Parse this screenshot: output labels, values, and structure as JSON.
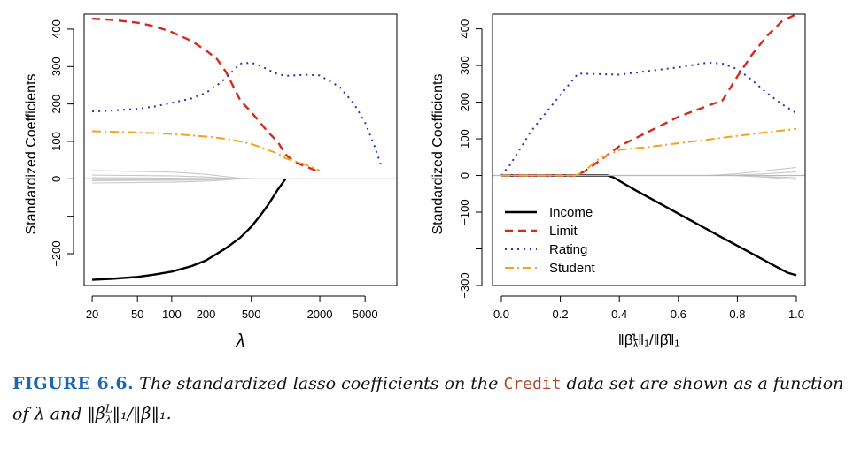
{
  "caption": {
    "label": "FIGURE 6.6.",
    "text1": "The standardized lasso coefficients on the",
    "dataset": "Credit",
    "text2": "data set are shown as a function of",
    "lambda": "λ",
    "and": "and",
    "norm": "‖β̂",
    "sup": "L",
    "sub": "λ",
    "norm_tail": "‖₁/‖β̂‖₁."
  },
  "chart_data": [
    {
      "type": "line",
      "panel": "left",
      "xlabel": "λ",
      "ylabel": "Standardized Coefficients",
      "xscale": "log",
      "xlim": [
        17,
        9500
      ],
      "ylim": [
        -285,
        440
      ],
      "xticks": [
        20,
        50,
        100,
        200,
        500,
        2000,
        5000
      ],
      "xtick_labels": [
        "20",
        "50",
        "100",
        "200",
        "500",
        "2000",
        "5000"
      ],
      "yticks": [
        -200,
        -100,
        0,
        100,
        200,
        300,
        400
      ],
      "ytick_labels": [
        "−200",
        "",
        "0",
        "100",
        "200",
        "300",
        "400"
      ],
      "legend": [],
      "series": [
        {
          "name": "Income",
          "color": "#000000",
          "dash": "",
          "width": 2.4,
          "x": [
            20,
            30,
            50,
            70,
            100,
            150,
            200,
            300,
            400,
            500,
            600,
            700,
            850,
            1000
          ],
          "y": [
            -270,
            -267,
            -262,
            -256,
            -248,
            -233,
            -218,
            -185,
            -157,
            -128,
            -98,
            -70,
            -30,
            0
          ]
        },
        {
          "name": "Limit",
          "color": "#d52a1e",
          "dash": "9,6",
          "width": 2.4,
          "x": [
            20,
            30,
            50,
            70,
            100,
            150,
            200,
            250,
            300,
            400,
            500,
            600,
            700,
            850,
            1000,
            1200,
            1500,
            2000
          ],
          "y": [
            428,
            425,
            417,
            408,
            392,
            368,
            343,
            320,
            285,
            210,
            178,
            150,
            125,
            100,
            65,
            45,
            33,
            18
          ]
        },
        {
          "name": "Rating",
          "color": "#2a2fc0",
          "dash": "2,5",
          "width": 2.0,
          "x": [
            20,
            30,
            50,
            70,
            100,
            150,
            200,
            250,
            300,
            400,
            500,
            600,
            700,
            850,
            1000,
            1500,
            2000,
            3000,
            4000,
            5000,
            6000,
            7000
          ],
          "y": [
            180,
            182,
            187,
            193,
            203,
            215,
            230,
            250,
            270,
            308,
            310,
            302,
            292,
            280,
            275,
            278,
            276,
            245,
            200,
            150,
            90,
            30
          ]
        },
        {
          "name": "Student",
          "color": "#f4a21b",
          "dash": "10,4,2,4",
          "width": 2.0,
          "x": [
            20,
            50,
            100,
            200,
            300,
            400,
            500,
            600,
            700,
            850,
            1000,
            1500,
            2000
          ],
          "y": [
            127,
            124,
            120,
            113,
            107,
            100,
            93,
            85,
            77,
            68,
            55,
            38,
            22
          ]
        },
        {
          "name": "other-1",
          "color": "#c8c8c8",
          "dash": "",
          "width": 1.1,
          "x": [
            20,
            100,
            200,
            300,
            400,
            500
          ],
          "y": [
            22,
            18,
            12,
            6,
            2,
            0
          ]
        },
        {
          "name": "other-2",
          "color": "#c8c8c8",
          "dash": "",
          "width": 1.1,
          "x": [
            20,
            100,
            200,
            300,
            400,
            500
          ],
          "y": [
            10,
            8,
            5,
            2,
            0,
            0
          ]
        },
        {
          "name": "other-3",
          "color": "#c8c8c8",
          "dash": "",
          "width": 1.1,
          "x": [
            20,
            100,
            200,
            300,
            400
          ],
          "y": [
            -5,
            -4,
            -3,
            -1,
            0
          ]
        },
        {
          "name": "other-4",
          "color": "#c8c8c8",
          "dash": "",
          "width": 1.1,
          "x": [
            20,
            100,
            200,
            300,
            400
          ],
          "y": [
            -11,
            -9,
            -6,
            -3,
            0
          ]
        },
        {
          "name": "other-5",
          "color": "#c8c8c8",
          "dash": "",
          "width": 1.1,
          "x": [
            20,
            100,
            200,
            300,
            400
          ],
          "y": [
            3,
            2,
            1,
            0,
            0
          ]
        },
        {
          "name": "other-6",
          "color": "#c8c8c8",
          "dash": "",
          "width": 1.1,
          "x": [
            20,
            100,
            200,
            300,
            400
          ],
          "y": [
            -2,
            -2,
            -1,
            0,
            0
          ]
        },
        {
          "name": "zero-line",
          "color": "#b8b8b8",
          "dash": "",
          "width": 1.2,
          "x": [
            17,
            9500
          ],
          "y": [
            0,
            0
          ]
        }
      ]
    },
    {
      "type": "line",
      "panel": "right",
      "xlabel": "‖β̂Lλ‖₁/‖β̂‖₁",
      "ylabel": "Standardized Coefficients",
      "xscale": "linear",
      "xlim": [
        -0.03,
        1.03
      ],
      "ylim": [
        -300,
        440
      ],
      "xticks": [
        0.0,
        0.2,
        0.4,
        0.6,
        0.8,
        1.0
      ],
      "xtick_labels": [
        "0.0",
        "0.2",
        "0.4",
        "0.6",
        "0.8",
        "1.0"
      ],
      "yticks": [
        -300,
        -200,
        -100,
        0,
        100,
        200,
        300,
        400
      ],
      "ytick_labels": [
        "−300",
        "",
        "−100",
        "0",
        "100",
        "200",
        "300",
        "400"
      ],
      "legend": [
        {
          "label": "Income",
          "color": "#000000",
          "dash": "",
          "width": 2.4
        },
        {
          "label": "Limit",
          "color": "#d52a1e",
          "dash": "9,6",
          "width": 2.4
        },
        {
          "label": "Rating",
          "color": "#2a2fc0",
          "dash": "2,5",
          "width": 2.0
        },
        {
          "label": "Student",
          "color": "#f4a21b",
          "dash": "10,4,2,4",
          "width": 2.0
        }
      ],
      "series": [
        {
          "name": "Income",
          "color": "#000000",
          "dash": "",
          "width": 2.4,
          "x": [
            0,
            0.36,
            0.38,
            0.45,
            0.55,
            0.65,
            0.75,
            0.85,
            0.93,
            0.97,
            1.0
          ],
          "y": [
            0,
            0,
            -5,
            -38,
            -82,
            -126,
            -170,
            -213,
            -248,
            -265,
            -272
          ]
        },
        {
          "name": "Limit",
          "color": "#d52a1e",
          "dash": "9,6",
          "width": 2.4,
          "x": [
            0,
            0.25,
            0.28,
            0.35,
            0.4,
            0.5,
            0.6,
            0.7,
            0.75,
            0.8,
            0.85,
            0.9,
            0.95,
            1.0
          ],
          "y": [
            0,
            0,
            10,
            50,
            80,
            120,
            160,
            190,
            205,
            270,
            330,
            380,
            420,
            440
          ]
        },
        {
          "name": "Rating",
          "color": "#2a2fc0",
          "dash": "2,5",
          "width": 2.0,
          "x": [
            0,
            0.03,
            0.1,
            0.2,
            0.26,
            0.3,
            0.4,
            0.5,
            0.6,
            0.7,
            0.75,
            0.8,
            0.85,
            0.9,
            0.95,
            1.0
          ],
          "y": [
            0,
            30,
            120,
            220,
            278,
            277,
            275,
            285,
            295,
            308,
            305,
            290,
            260,
            225,
            195,
            170
          ]
        },
        {
          "name": "Student",
          "color": "#f4a21b",
          "dash": "10,4,2,4",
          "width": 2.0,
          "x": [
            0,
            0.25,
            0.28,
            0.32,
            0.4,
            0.5,
            0.6,
            0.7,
            0.8,
            0.9,
            1.0
          ],
          "y": [
            0,
            0,
            10,
            40,
            70,
            78,
            88,
            98,
            108,
            118,
            127
          ]
        },
        {
          "name": "other-1",
          "color": "#c8c8c8",
          "dash": "",
          "width": 1.1,
          "x": [
            0.7,
            0.8,
            0.9,
            1.0
          ],
          "y": [
            0,
            5,
            13,
            22
          ]
        },
        {
          "name": "other-2",
          "color": "#c8c8c8",
          "dash": "",
          "width": 1.1,
          "x": [
            0.75,
            0.85,
            0.92,
            1.0
          ],
          "y": [
            0,
            3,
            6,
            10
          ]
        },
        {
          "name": "other-3",
          "color": "#c8c8c8",
          "dash": "",
          "width": 1.1,
          "x": [
            0.78,
            0.88,
            1.0
          ],
          "y": [
            0,
            -3,
            -6
          ]
        },
        {
          "name": "other-4",
          "color": "#c8c8c8",
          "dash": "",
          "width": 1.1,
          "x": [
            0.8,
            0.9,
            1.0
          ],
          "y": [
            0,
            -5,
            -11
          ]
        },
        {
          "name": "zero-line",
          "color": "#b8b8b8",
          "dash": "",
          "width": 1.2,
          "x": [
            -0.03,
            1.03
          ],
          "y": [
            0,
            0
          ]
        }
      ]
    }
  ]
}
